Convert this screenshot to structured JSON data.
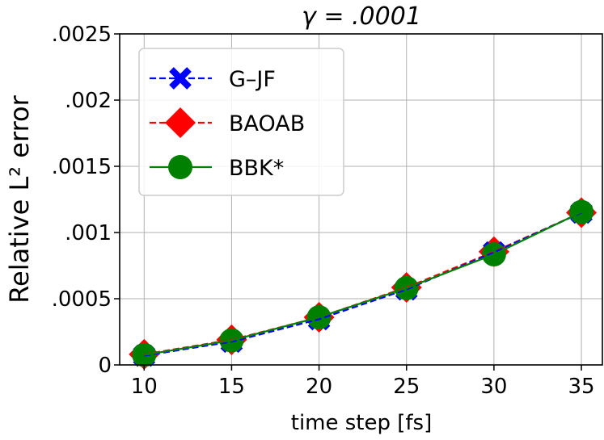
{
  "chart_data": {
    "type": "line",
    "title": "γ = .0001",
    "xlabel": "time step [fs]",
    "ylabel": "Relative L² error",
    "x": [
      10,
      15,
      20,
      25,
      30,
      35
    ],
    "xticks": [
      "10",
      "15",
      "20",
      "25",
      "30",
      "35"
    ],
    "xlim": [
      8.6,
      36.2
    ],
    "ylim": [
      0,
      0.0025
    ],
    "yticks": [
      0,
      0.0005,
      0.001,
      0.0015,
      0.002,
      0.0025
    ],
    "ytick_labels": [
      "0",
      ".0005",
      ".001",
      ".0015",
      ".002",
      ".0025"
    ],
    "grid": true,
    "legend_position": "top-left",
    "series": [
      {
        "name": "G–JF",
        "color": "#0000ff",
        "marker": "x",
        "dash": "dashed",
        "values": [
          7e-05,
          0.000175,
          0.000345,
          0.00057,
          0.00085,
          0.00115
        ]
      },
      {
        "name": "BAOAB",
        "color": "#ff0000",
        "marker": "diamond",
        "dash": "dashed",
        "values": [
          8e-05,
          0.00019,
          0.00036,
          0.000585,
          0.000855,
          0.00115
        ]
      },
      {
        "name": "BBK*",
        "color": "#008000",
        "marker": "circle",
        "dash": "solid",
        "values": [
          7.5e-05,
          0.000185,
          0.00036,
          0.00058,
          0.000835,
          0.001155
        ]
      }
    ]
  }
}
